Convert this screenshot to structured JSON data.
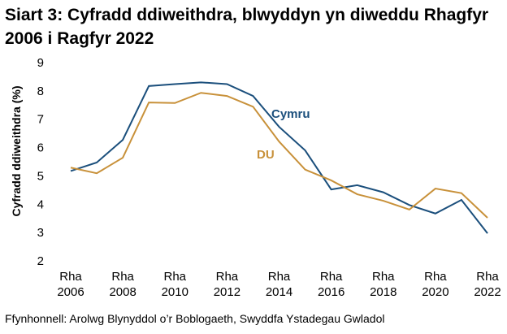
{
  "chart_data": {
    "type": "line",
    "title": "Siart 3: Cyfradd ddiweithdra, blwyddyn yn diweddu Rhagfyr 2006 i Ragfyr 2022",
    "y_label": "Cyfradd ddiweithdra (%)",
    "source": "Ffynhonnell: Arolwg Blynyddol o’r Boblogaeth, Swyddfa Ystadegau Gwladol",
    "categories": [
      "Rha 2006",
      null,
      "Rha 2008",
      null,
      "Rha 2010",
      null,
      "Rha 2012",
      null,
      "Rha 2014",
      null,
      "Rha 2016",
      null,
      "Rha 2018",
      null,
      "Rha 2020",
      null,
      "Rha 2022"
    ],
    "series": [
      {
        "name": "Cymru",
        "color": "#1b4f7c",
        "values": [
          5.2,
          5.5,
          6.3,
          8.2,
          8.27,
          8.33,
          8.27,
          7.85,
          6.76,
          5.93,
          4.55,
          4.7,
          4.45,
          4.0,
          3.7,
          4.18,
          3.0
        ]
      },
      {
        "name": "DU",
        "color": "#c8913a",
        "values": [
          5.32,
          5.12,
          5.67,
          7.62,
          7.6,
          7.96,
          7.85,
          7.47,
          6.24,
          5.25,
          4.87,
          4.38,
          4.15,
          3.84,
          4.58,
          4.42,
          3.55
        ]
      }
    ],
    "ylim": [
      2,
      9
    ],
    "yticks": [
      2,
      3,
      4,
      5,
      6,
      7,
      8,
      9
    ]
  }
}
